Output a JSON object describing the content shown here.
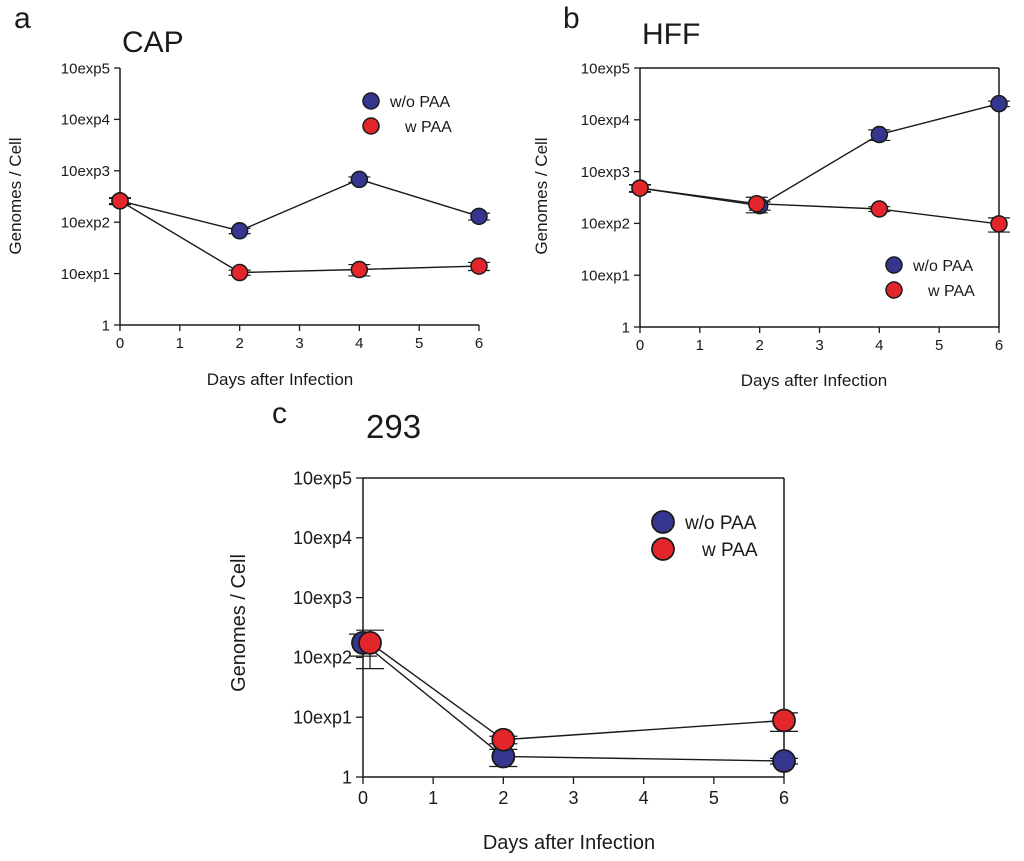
{
  "chart_data": [
    {
      "panel": "a",
      "type": "line",
      "title": "CAP",
      "xlabel": "Days after Infection",
      "ylabel": "Genomes / Cell",
      "yscale": "log",
      "xlim": [
        0,
        6
      ],
      "ylim": [
        1,
        100000
      ],
      "xticks": [
        0,
        1,
        2,
        3,
        4,
        5,
        6
      ],
      "xtick_labels": [
        "0",
        "1",
        "2",
        "3",
        "4",
        "5",
        "6"
      ],
      "yticks": [
        1,
        10,
        100,
        1000,
        10000,
        100000
      ],
      "ytick_labels": [
        "1",
        "10exp1",
        "10exp2",
        "10exp3",
        "10exp4",
        "10exp5"
      ],
      "legend_position": "top-right",
      "series": [
        {
          "name": "w/o PAA",
          "color": "#35368f",
          "x": [
            0,
            2,
            4,
            6
          ],
          "y": [
            260,
            68,
            680,
            130
          ],
          "err": [
            30,
            8,
            80,
            20
          ]
        },
        {
          "name": "w PAA",
          "color": "#e3262b",
          "x": [
            0,
            2,
            4,
            6
          ],
          "y": [
            260,
            10.5,
            12,
            14
          ],
          "err": [
            40,
            1.2,
            3,
            2.5
          ]
        }
      ]
    },
    {
      "panel": "b",
      "type": "line",
      "title": "HFF",
      "xlabel": "Days after Infection",
      "ylabel": "Genomes / Cell",
      "yscale": "log",
      "xlim": [
        0,
        6
      ],
      "ylim": [
        1,
        100000
      ],
      "xticks": [
        0,
        1,
        2,
        3,
        4,
        5,
        6
      ],
      "xtick_labels": [
        "0",
        "1",
        "2",
        "3",
        "4",
        "5",
        "6"
      ],
      "yticks": [
        1,
        10,
        100,
        1000,
        10000,
        100000
      ],
      "ytick_labels": [
        "1",
        "10exp1",
        "10exp2",
        "10exp3",
        "10exp4",
        "10exp5"
      ],
      "legend_position": "bottom-right",
      "series": [
        {
          "name": "w/o PAA",
          "color": "#35368f",
          "x": [
            0,
            2,
            4,
            6
          ],
          "y": [
            480,
            220,
            5200,
            20500
          ],
          "err": [
            70,
            40,
            1200,
            2500
          ]
        },
        {
          "name": "w PAA",
          "color": "#e3262b",
          "x": [
            0,
            1.95,
            4,
            6
          ],
          "y": [
            480,
            240,
            190,
            98
          ],
          "err": [
            80,
            80,
            20,
            30
          ]
        }
      ]
    },
    {
      "panel": "c",
      "type": "line",
      "title": "293",
      "xlabel": "Days after Infection",
      "ylabel": "Genomes / Cell",
      "yscale": "log",
      "xlim": [
        0,
        6
      ],
      "ylim": [
        1,
        100000
      ],
      "xticks": [
        0,
        1,
        2,
        3,
        4,
        5,
        6
      ],
      "xtick_labels": [
        "0",
        "1",
        "2",
        "3",
        "4",
        "5",
        "6"
      ],
      "yticks": [
        1,
        10,
        100,
        1000,
        10000,
        100000
      ],
      "ytick_labels": [
        "1",
        "10exp1",
        "10exp2",
        "10exp3",
        "10exp4",
        "10exp5"
      ],
      "legend_position": "top-right",
      "series": [
        {
          "name": "w/o PAA",
          "color": "#35368f",
          "x": [
            0,
            2,
            6
          ],
          "y": [
            175,
            2.2,
            1.85
          ],
          "err": [
            70,
            0.7,
            0.2
          ]
        },
        {
          "name": "w PAA",
          "color": "#e3262b",
          "x": [
            0.1,
            2,
            6
          ],
          "y": [
            175,
            4.2,
            8.8
          ],
          "err": [
            110,
            0.6,
            3
          ]
        }
      ]
    }
  ]
}
